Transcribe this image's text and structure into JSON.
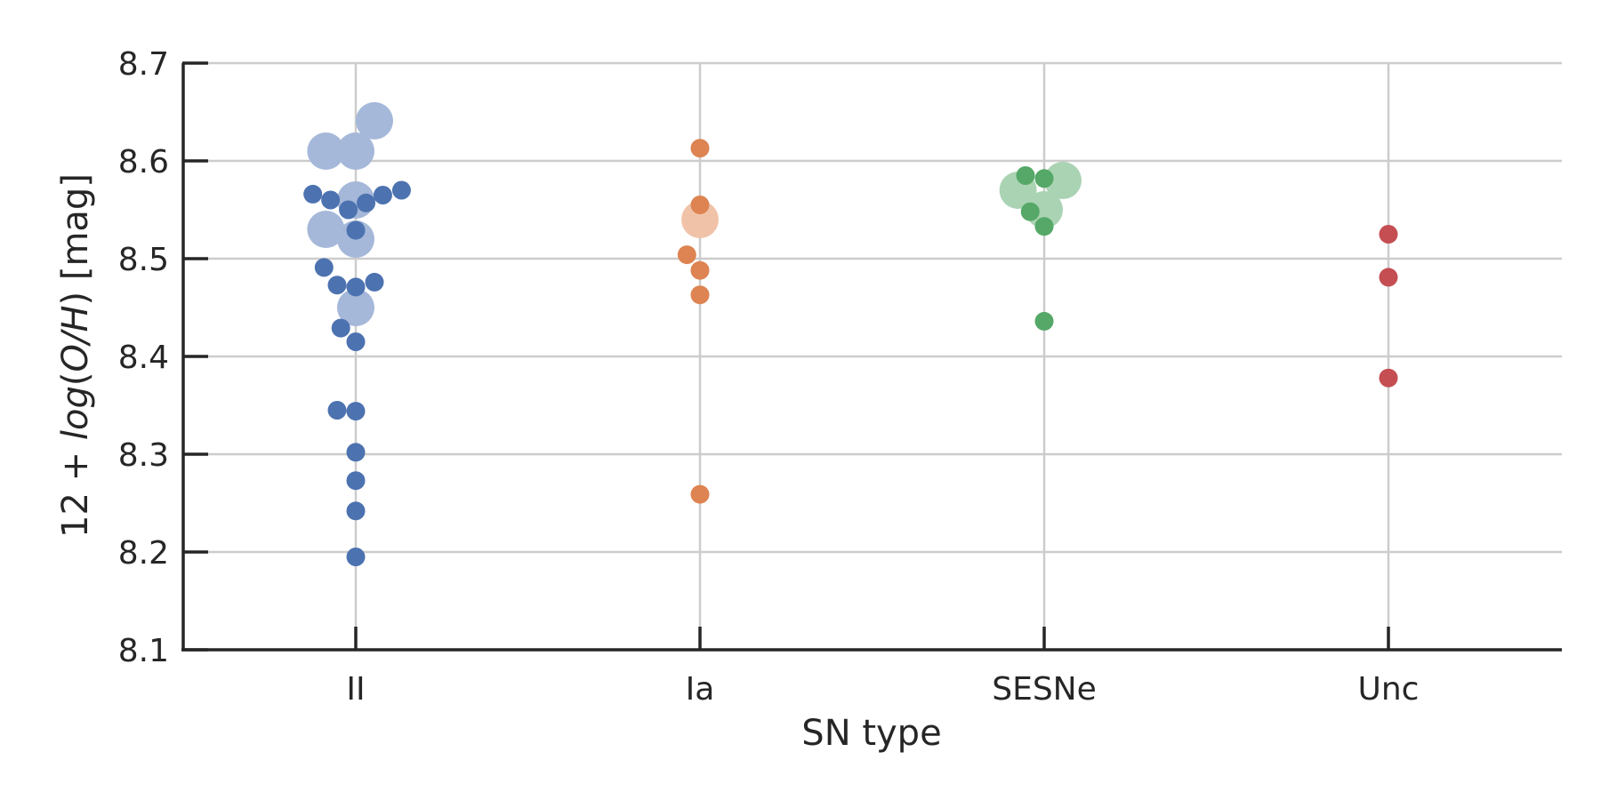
{
  "chart_data": {
    "type": "scatter",
    "xlabel": "SN type",
    "ylabel": {
      "prefix": "12 + ",
      "italic": "log",
      "paren_open": "(",
      "italic2": "O/H",
      "paren_close": ")",
      "suffix": " [mag]"
    },
    "ylim": [
      8.1,
      8.7
    ],
    "yticks": [
      "8.1",
      "8.2",
      "8.3",
      "8.4",
      "8.5",
      "8.6",
      "8.7"
    ],
    "categories": [
      "II",
      "Ia",
      "SESNe",
      "Unc"
    ],
    "grid": true,
    "series": [
      {
        "category": "II",
        "color": "#4c72b0",
        "faded_color": "#a5b8d9",
        "points": [
          {
            "y": 8.195,
            "offset": 0,
            "big": false
          },
          {
            "y": 8.242,
            "offset": 0,
            "big": false
          },
          {
            "y": 8.273,
            "offset": 0,
            "big": false
          },
          {
            "y": 8.302,
            "offset": 0,
            "big": false
          },
          {
            "y": 8.344,
            "offset": 0,
            "big": false
          },
          {
            "y": 8.345,
            "offset": -1,
            "big": false
          },
          {
            "y": 8.415,
            "offset": 0,
            "big": false
          },
          {
            "y": 8.429,
            "offset": -0.8,
            "big": false
          },
          {
            "y": 8.45,
            "offset": 0,
            "big": true
          },
          {
            "y": 8.471,
            "offset": 0,
            "big": false
          },
          {
            "y": 8.473,
            "offset": -1,
            "big": false
          },
          {
            "y": 8.476,
            "offset": 1,
            "big": false
          },
          {
            "y": 8.491,
            "offset": -1.7,
            "big": false
          },
          {
            "y": 8.52,
            "offset": 0,
            "big": true
          },
          {
            "y": 8.529,
            "offset": 0,
            "big": false
          },
          {
            "y": 8.53,
            "offset": -1.6,
            "big": true
          },
          {
            "y": 8.55,
            "offset": -0.4,
            "big": false
          },
          {
            "y": 8.557,
            "offset": 0.55,
            "big": false
          },
          {
            "y": 8.56,
            "offset": 0,
            "big": true
          },
          {
            "y": 8.56,
            "offset": -1.35,
            "big": false
          },
          {
            "y": 8.565,
            "offset": 1.45,
            "big": false
          },
          {
            "y": 8.566,
            "offset": -2.3,
            "big": false
          },
          {
            "y": 8.57,
            "offset": 2.45,
            "big": false
          },
          {
            "y": 8.61,
            "offset": -1.6,
            "big": true
          },
          {
            "y": 8.61,
            "offset": 0,
            "big": true
          },
          {
            "y": 8.641,
            "offset": 1.0,
            "big": true
          }
        ]
      },
      {
        "category": "Ia",
        "color": "#dd8452",
        "faded_color": "#f0c3a9",
        "points": [
          {
            "y": 8.259,
            "offset": 0,
            "big": false
          },
          {
            "y": 8.463,
            "offset": 0,
            "big": false
          },
          {
            "y": 8.488,
            "offset": 0,
            "big": false
          },
          {
            "y": 8.504,
            "offset": -0.7,
            "big": false
          },
          {
            "y": 8.54,
            "offset": 0,
            "big": true
          },
          {
            "y": 8.555,
            "offset": 0,
            "big": false
          },
          {
            "y": 8.613,
            "offset": 0,
            "big": false
          }
        ]
      },
      {
        "category": "SESNe",
        "color": "#55a868",
        "faded_color": "#aad3b3",
        "points": [
          {
            "y": 8.436,
            "offset": 0,
            "big": false
          },
          {
            "y": 8.533,
            "offset": 0,
            "big": false
          },
          {
            "y": 8.548,
            "offset": -0.75,
            "big": false
          },
          {
            "y": 8.55,
            "offset": 0,
            "big": true
          },
          {
            "y": 8.57,
            "offset": -1.4,
            "big": true
          },
          {
            "y": 8.58,
            "offset": 1.0,
            "big": true
          },
          {
            "y": 8.582,
            "offset": 0,
            "big": false
          },
          {
            "y": 8.585,
            "offset": -1.0,
            "big": false
          }
        ]
      },
      {
        "category": "Unc",
        "color": "#c44e52",
        "faded_color": "#e1a6a8",
        "points": [
          {
            "y": 8.378,
            "offset": 0,
            "big": false
          },
          {
            "y": 8.481,
            "offset": 0,
            "big": false
          },
          {
            "y": 8.525,
            "offset": 0,
            "big": false
          }
        ]
      }
    ]
  }
}
